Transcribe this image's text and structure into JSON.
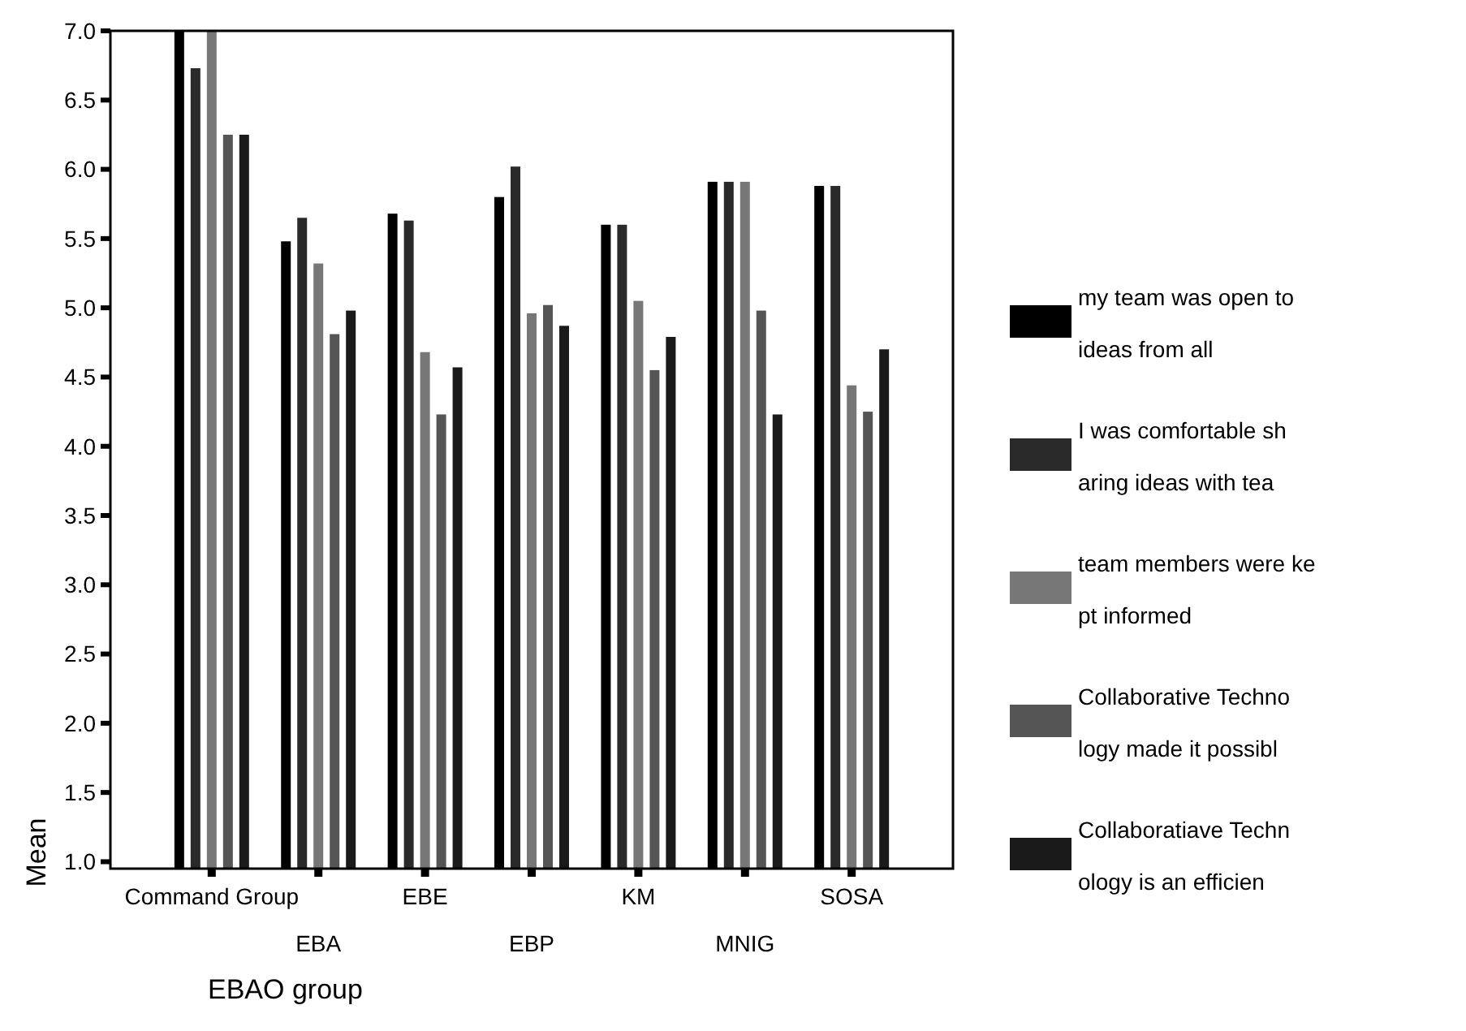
{
  "chart_data": {
    "type": "bar",
    "xlabel": "EBAO group",
    "ylabel": "Mean",
    "categories": [
      "Command Group",
      "EBA",
      "EBE",
      "EBP",
      "KM",
      "MNIG",
      "SOSA"
    ],
    "series": [
      {
        "name": "my team was open to ideas from all",
        "color": "#000000",
        "values": [
          7.0,
          5.48,
          5.68,
          5.8,
          5.6,
          5.91,
          5.88
        ]
      },
      {
        "name": "I was comfortable sharing ideas with tea",
        "color": "#2a2a2a",
        "values": [
          6.73,
          5.65,
          5.63,
          6.02,
          5.6,
          5.91,
          5.88
        ]
      },
      {
        "name": "team members were kept informed",
        "color": "#777777",
        "values": [
          7.0,
          5.32,
          4.68,
          4.96,
          5.05,
          5.91,
          4.44
        ]
      },
      {
        "name": "Collaborative Technology made it possibl",
        "color": "#555555",
        "values": [
          6.25,
          4.81,
          4.23,
          5.02,
          4.55,
          4.98,
          4.25
        ]
      },
      {
        "name": "Collaboratiave Technology is an efficien",
        "color": "#1a1a1a",
        "values": [
          6.25,
          4.98,
          4.57,
          4.87,
          4.79,
          4.23,
          4.7
        ]
      }
    ],
    "ylim": [
      0.95,
      7
    ],
    "yticks": [
      {
        "value": 1,
        "label": "1.0"
      },
      1.5,
      {
        "value": 2,
        "label": "2.0"
      },
      2.5,
      {
        "value": 3,
        "label": "3.0"
      },
      3.5,
      {
        "value": 4,
        "label": "4.0"
      },
      4.5,
      {
        "value": 5,
        "label": "5.0"
      },
      5.5,
      {
        "value": 6,
        "label": "6.0"
      },
      6.5,
      {
        "value": 7,
        "label": "7.0"
      }
    ],
    "grid": false,
    "legend": "right"
  }
}
